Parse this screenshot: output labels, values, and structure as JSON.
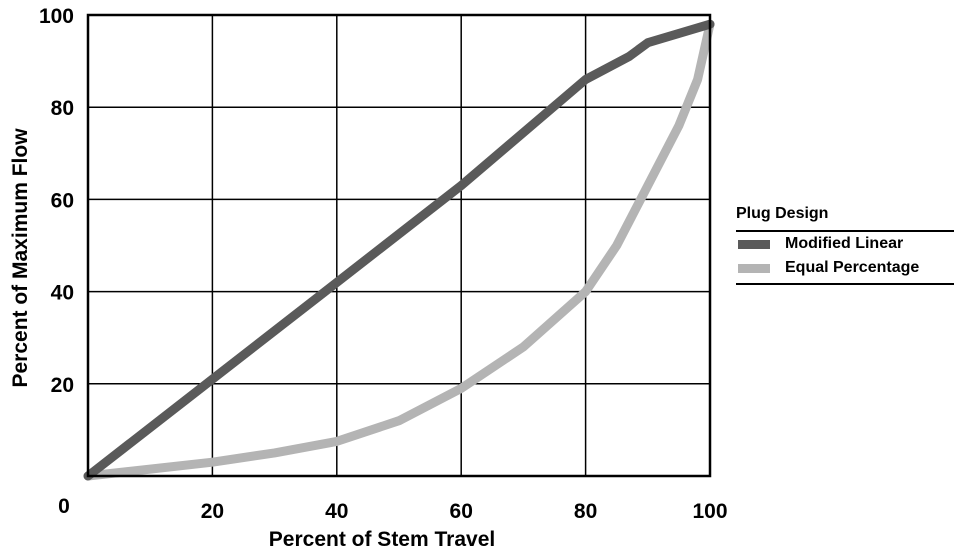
{
  "colors": {
    "modified_linear": "#5a5a5a",
    "equal_percentage": "#b4b4b4",
    "axis": "#000000"
  },
  "chart_data": {
    "type": "line",
    "xlabel": "Percent of Stem Travel",
    "ylabel": "Percent of Maximum Flow",
    "xlim": [
      0,
      100
    ],
    "ylim": [
      0,
      100
    ],
    "origin_label": "0",
    "xticks": [
      20,
      40,
      60,
      80,
      100
    ],
    "xtick_labels": [
      "20",
      "40",
      "60",
      "80",
      "100"
    ],
    "yticks": [
      20,
      40,
      60,
      80,
      100
    ],
    "ytick_labels": [
      "20",
      "40",
      "60",
      "80",
      "100"
    ],
    "grid": true,
    "legend": {
      "title": "Plug Design",
      "position": "right"
    },
    "series": [
      {
        "name": "Modified Linear",
        "x": [
          0,
          20,
          40,
          60,
          80,
          87,
          90,
          100
        ],
        "y": [
          0,
          21,
          42,
          63,
          86,
          91,
          94,
          98
        ]
      },
      {
        "name": "Equal Percentage",
        "x": [
          0,
          10,
          20,
          30,
          40,
          50,
          60,
          70,
          80,
          85,
          90,
          95,
          98,
          100
        ],
        "y": [
          0,
          1.5,
          3,
          5,
          7.5,
          12,
          19,
          28,
          40,
          50,
          63,
          76,
          86,
          98
        ]
      }
    ]
  }
}
